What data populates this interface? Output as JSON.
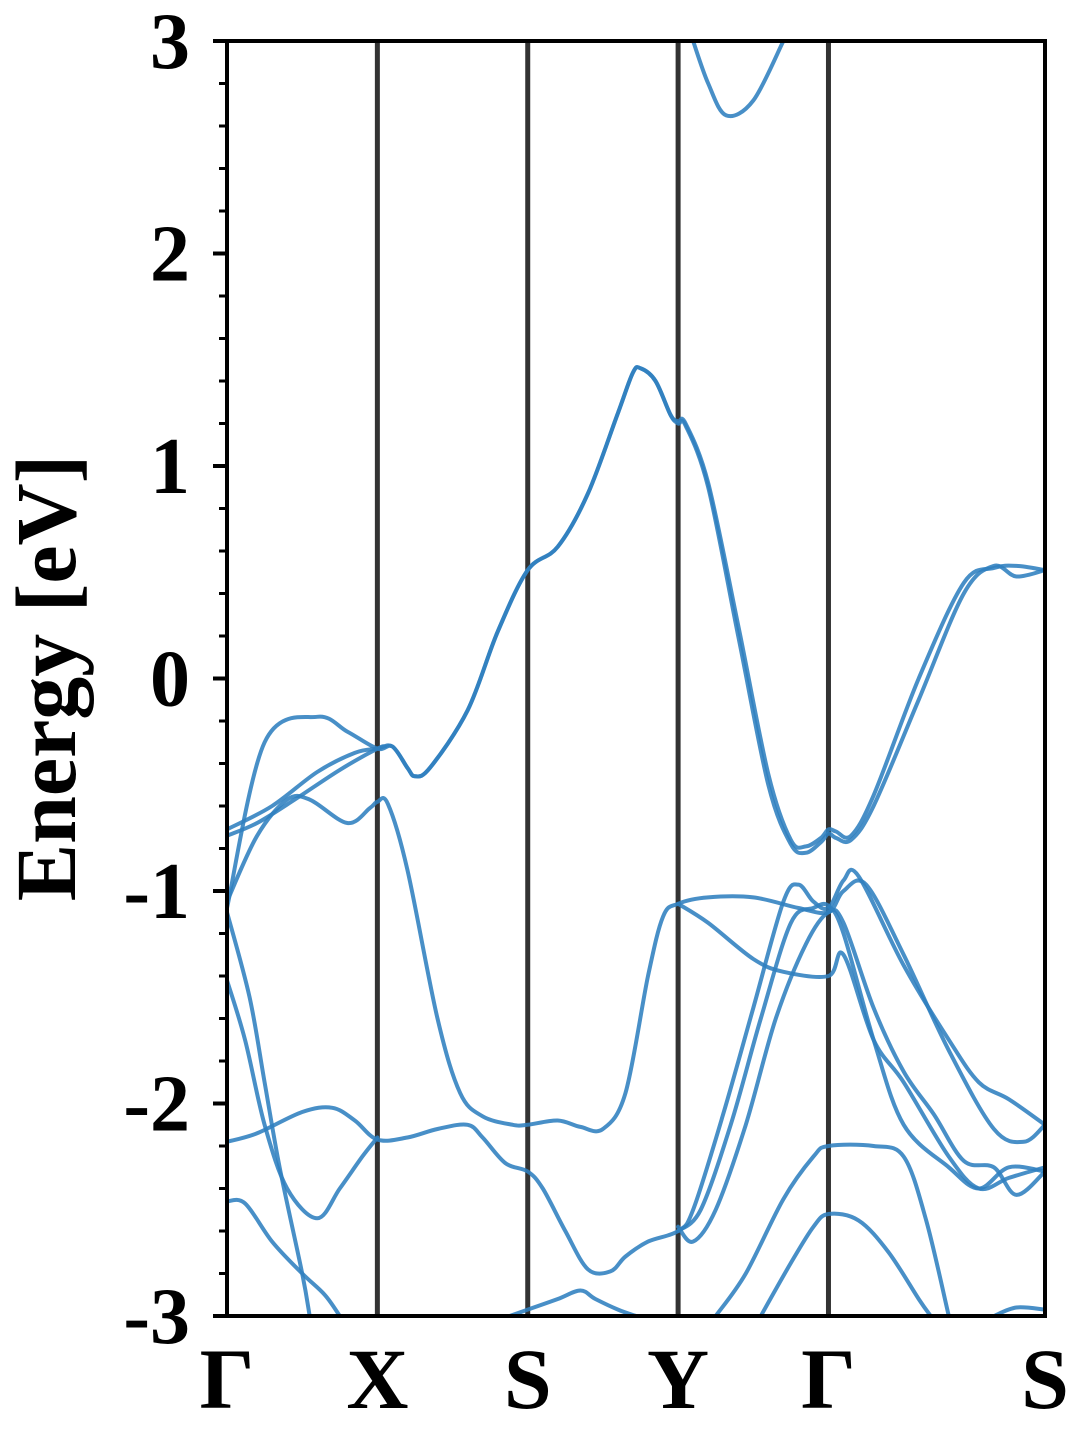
{
  "chart_data": {
    "type": "line",
    "title": "",
    "xlabel": "",
    "ylabel": "Energy [eV]",
    "ylim": [
      -3,
      3
    ],
    "yticks": [
      "-3",
      "-2",
      "-1",
      "0",
      "1",
      "2",
      "3"
    ],
    "high_symmetry_points": [
      {
        "label": "Γ",
        "x": 0.0
      },
      {
        "label": "X",
        "x": 1.0
      },
      {
        "label": "S",
        "x": 2.0
      },
      {
        "label": "Y",
        "x": 3.0
      },
      {
        "label": "Γ",
        "x": 4.0
      },
      {
        "label": "S",
        "x": 5.44
      }
    ],
    "grid": false,
    "line_color": "#2f7fbf",
    "kpath_line_color": "#333333",
    "series": [
      {
        "values": [
          [
            0,
            -1.08
          ],
          [
            0.25,
            -0.3
          ],
          [
            0.6,
            -0.18
          ],
          [
            0.8,
            -0.25
          ],
          [
            1,
            -0.33
          ],
          [
            1.1,
            -0.32
          ],
          [
            1.2,
            -0.42
          ],
          [
            1.25,
            -0.46
          ],
          [
            1.35,
            -0.42
          ],
          [
            1.6,
            -0.15
          ],
          [
            1.8,
            0.22
          ],
          [
            2,
            0.51
          ],
          [
            2.2,
            0.62
          ],
          [
            2.4,
            0.87
          ],
          [
            2.6,
            1.25
          ],
          [
            2.7,
            1.44
          ],
          [
            2.75,
            1.46
          ],
          [
            2.85,
            1.4
          ],
          [
            2.95,
            1.24
          ],
          [
            3,
            1.2
          ],
          [
            3.05,
            1.19
          ],
          [
            3.2,
            0.9
          ],
          [
            3.4,
            0.2
          ],
          [
            3.6,
            -0.5
          ],
          [
            3.75,
            -0.78
          ],
          [
            3.85,
            -0.82
          ],
          [
            3.95,
            -0.77
          ],
          [
            4,
            -0.73
          ],
          [
            4.05,
            -0.75
          ],
          [
            4.15,
            -0.76
          ],
          [
            4.3,
            -0.6
          ],
          [
            4.6,
            -0.1
          ],
          [
            4.9,
            0.4
          ],
          [
            5.1,
            0.53
          ],
          [
            5.25,
            0.48
          ],
          [
            5.44,
            0.51
          ]
        ]
      },
      {
        "values": [
          [
            0,
            -0.71
          ],
          [
            0.3,
            -0.6
          ],
          [
            0.6,
            -0.44
          ],
          [
            0.85,
            -0.35
          ],
          [
            1,
            -0.33
          ],
          [
            1.1,
            -0.32
          ],
          [
            1.2,
            -0.42
          ],
          [
            1.25,
            -0.46
          ],
          [
            1.35,
            -0.42
          ],
          [
            1.6,
            -0.15
          ],
          [
            1.8,
            0.22
          ],
          [
            2,
            0.51
          ],
          [
            2.2,
            0.62
          ],
          [
            2.4,
            0.87
          ],
          [
            2.6,
            1.25
          ],
          [
            2.7,
            1.44
          ],
          [
            2.75,
            1.46
          ],
          [
            2.85,
            1.4
          ],
          [
            2.95,
            1.24
          ],
          [
            3,
            1.21
          ],
          [
            3.05,
            1.2
          ],
          [
            3.2,
            0.92
          ],
          [
            3.4,
            0.25
          ],
          [
            3.6,
            -0.45
          ],
          [
            3.75,
            -0.76
          ],
          [
            3.85,
            -0.79
          ],
          [
            3.95,
            -0.75
          ],
          [
            4,
            -0.71
          ],
          [
            4.05,
            -0.72
          ],
          [
            4.15,
            -0.74
          ],
          [
            4.3,
            -0.55
          ],
          [
            4.6,
            0.0
          ],
          [
            4.9,
            0.45
          ],
          [
            5.1,
            0.52
          ],
          [
            5.25,
            0.53
          ],
          [
            5.44,
            0.51
          ]
        ]
      },
      {
        "values": [
          [
            0,
            -0.74
          ],
          [
            0.2,
            -0.68
          ],
          [
            0.45,
            -0.57
          ],
          [
            0.75,
            -0.43
          ],
          [
            1,
            -0.33
          ],
          [
            1.05,
            -0.32
          ]
        ]
      },
      {
        "values": [
          [
            0,
            -1.05
          ],
          [
            0.2,
            -0.74
          ],
          [
            0.4,
            -0.57
          ],
          [
            0.55,
            -0.57
          ],
          [
            0.8,
            -0.68
          ],
          [
            0.95,
            -0.61
          ],
          [
            1,
            -0.58
          ],
          [
            1.07,
            -0.59
          ],
          [
            1.2,
            -0.9
          ],
          [
            1.4,
            -1.6
          ],
          [
            1.55,
            -1.95
          ],
          [
            1.7,
            -2.06
          ],
          [
            1.9,
            -2.1
          ],
          [
            2,
            -2.1
          ],
          [
            2.2,
            -2.08
          ],
          [
            2.35,
            -2.11
          ],
          [
            2.5,
            -2.12
          ],
          [
            2.65,
            -1.95
          ],
          [
            2.8,
            -1.4
          ],
          [
            2.9,
            -1.12
          ],
          [
            3,
            -1.06
          ],
          [
            3.2,
            -1.03
          ],
          [
            3.5,
            -1.03
          ],
          [
            3.8,
            -1.08
          ],
          [
            4,
            -1.1
          ],
          [
            4.1,
            -1.0
          ],
          [
            4.25,
            -0.97
          ],
          [
            4.5,
            -1.3
          ],
          [
            4.8,
            -1.75
          ],
          [
            5.1,
            -2.12
          ],
          [
            5.3,
            -2.18
          ],
          [
            5.44,
            -2.1
          ]
        ]
      },
      {
        "values": [
          [
            3,
            -1.06
          ],
          [
            3.2,
            -1.15
          ],
          [
            3.5,
            -1.32
          ],
          [
            3.7,
            -1.38
          ],
          [
            4,
            -1.4
          ],
          [
            4.1,
            -1.3
          ],
          [
            4.3,
            -1.7
          ],
          [
            4.5,
            -1.9
          ],
          [
            4.8,
            -2.25
          ],
          [
            5,
            -2.4
          ],
          [
            5.2,
            -2.35
          ],
          [
            5.44,
            -2.3
          ]
        ]
      },
      {
        "values": [
          [
            0,
            -1.1
          ],
          [
            0.15,
            -1.5
          ],
          [
            0.25,
            -1.9
          ],
          [
            0.35,
            -2.3
          ],
          [
            0.5,
            -2.8
          ],
          [
            0.55,
            -3.0
          ]
        ]
      },
      {
        "values": [
          [
            0,
            -1.42
          ],
          [
            0.12,
            -1.7
          ],
          [
            0.25,
            -2.1
          ],
          [
            0.4,
            -2.4
          ],
          [
            0.6,
            -2.54
          ],
          [
            0.75,
            -2.4
          ],
          [
            0.9,
            -2.25
          ],
          [
            1,
            -2.16
          ]
        ]
      },
      {
        "values": [
          [
            0,
            -2.18
          ],
          [
            0.2,
            -2.14
          ],
          [
            0.5,
            -2.04
          ],
          [
            0.7,
            -2.02
          ],
          [
            0.85,
            -2.08
          ],
          [
            1,
            -2.17
          ],
          [
            1.2,
            -2.16
          ],
          [
            1.4,
            -2.12
          ],
          [
            1.6,
            -2.1
          ],
          [
            1.7,
            -2.16
          ],
          [
            1.85,
            -2.28
          ],
          [
            2,
            -2.32
          ],
          [
            2.1,
            -2.4
          ],
          [
            2.25,
            -2.6
          ],
          [
            2.4,
            -2.78
          ],
          [
            2.55,
            -2.79
          ],
          [
            2.65,
            -2.72
          ],
          [
            2.8,
            -2.65
          ],
          [
            3,
            -2.6
          ],
          [
            3.1,
            -2.5
          ],
          [
            3.3,
            -2.05
          ],
          [
            3.5,
            -1.55
          ],
          [
            3.7,
            -1.05
          ],
          [
            3.8,
            -0.97
          ],
          [
            3.9,
            -1.05
          ],
          [
            4,
            -1.08
          ],
          [
            4.1,
            -0.95
          ],
          [
            4.2,
            -0.93
          ],
          [
            4.5,
            -1.35
          ],
          [
            4.8,
            -1.7
          ],
          [
            5,
            -1.9
          ],
          [
            5.2,
            -1.98
          ],
          [
            5.44,
            -2.1
          ]
        ]
      },
      {
        "values": [
          [
            3,
            -2.6
          ],
          [
            3.15,
            -2.5
          ],
          [
            3.35,
            -2.1
          ],
          [
            3.55,
            -1.6
          ],
          [
            3.75,
            -1.15
          ],
          [
            3.9,
            -1.08
          ],
          [
            4,
            -1.07
          ],
          [
            4.1,
            -1.2
          ],
          [
            4.3,
            -1.7
          ],
          [
            4.5,
            -2.1
          ],
          [
            4.8,
            -2.3
          ],
          [
            5.0,
            -2.4
          ],
          [
            5.2,
            -2.3
          ],
          [
            5.44,
            -2.32
          ]
        ]
      },
      {
        "values": [
          [
            3,
            -2.58
          ],
          [
            3.1,
            -2.65
          ],
          [
            3.25,
            -2.5
          ],
          [
            3.45,
            -2.1
          ],
          [
            3.65,
            -1.6
          ],
          [
            3.85,
            -1.25
          ],
          [
            4,
            -1.1
          ],
          [
            4.1,
            -1.15
          ],
          [
            4.3,
            -1.55
          ],
          [
            4.5,
            -1.85
          ],
          [
            4.7,
            -2.05
          ],
          [
            4.9,
            -2.27
          ],
          [
            5.1,
            -2.3
          ],
          [
            5.25,
            -2.43
          ],
          [
            5.44,
            -2.32
          ]
        ]
      },
      {
        "values": [
          [
            0,
            -2.46
          ],
          [
            0.12,
            -2.47
          ],
          [
            0.3,
            -2.65
          ],
          [
            0.5,
            -2.8
          ],
          [
            0.65,
            -2.9
          ],
          [
            0.75,
            -3.0
          ]
        ]
      },
      {
        "values": [
          [
            1.88,
            -3.0
          ],
          [
            2,
            -2.97
          ],
          [
            2.2,
            -2.92
          ],
          [
            2.35,
            -2.88
          ],
          [
            2.45,
            -2.92
          ],
          [
            2.6,
            -2.97
          ],
          [
            2.72,
            -3.0
          ]
        ]
      },
      {
        "values": [
          [
            3.25,
            -3.0
          ],
          [
            3.45,
            -2.8
          ],
          [
            3.7,
            -2.45
          ],
          [
            3.9,
            -2.25
          ],
          [
            4,
            -2.2
          ],
          [
            4.3,
            -2.2
          ],
          [
            4.5,
            -2.25
          ],
          [
            4.65,
            -2.55
          ],
          [
            4.8,
            -3.0
          ]
        ]
      },
      {
        "values": [
          [
            3.55,
            -3.0
          ],
          [
            3.75,
            -2.75
          ],
          [
            3.9,
            -2.58
          ],
          [
            4,
            -2.52
          ],
          [
            4.2,
            -2.55
          ],
          [
            4.4,
            -2.7
          ],
          [
            4.6,
            -2.92
          ],
          [
            4.68,
            -3.0
          ]
        ]
      },
      {
        "values": [
          [
            5.1,
            -3.0
          ],
          [
            5.25,
            -2.96
          ],
          [
            5.44,
            -2.97
          ]
        ]
      },
      {
        "values": [
          [
            3.1,
            3.0
          ],
          [
            3.2,
            2.8
          ],
          [
            3.32,
            2.65
          ],
          [
            3.5,
            2.72
          ],
          [
            3.7,
            3.0
          ]
        ]
      }
    ]
  }
}
